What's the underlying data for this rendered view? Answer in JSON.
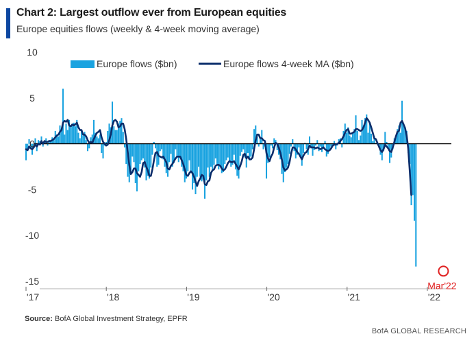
{
  "header": {
    "title": "Chart 2: Largest outflow ever from European equities",
    "subtitle": "Europe equities flows (weekly & 4-week moving average)"
  },
  "footer": {
    "source_label": "Source:",
    "source_text": "BofA Global Investment Strategy, EPFR",
    "brand": "BofA GLOBAL RESEARCH"
  },
  "colors": {
    "bar": "#1aa3e0",
    "line": "#0b2d6b",
    "accent": "#0d47a1",
    "highlight": "#e02020"
  },
  "chart_data": {
    "type": "bar",
    "title": "Chart 2: Largest outflow ever from European equities",
    "subtitle": "Europe equities flows (weekly & 4-week moving average)",
    "xlabel": "",
    "ylabel": "",
    "ylim": [
      -15,
      10
    ],
    "yticks": [
      10,
      5,
      0,
      -5,
      -10,
      -15
    ],
    "ytick_labels": [
      "10",
      "5",
      "0",
      "-5",
      "-10",
      "-15"
    ],
    "xlim": [
      2017.0,
      2022.35
    ],
    "xticks": [
      2017,
      2018,
      2019,
      2020,
      2021,
      2022
    ],
    "xtick_labels": [
      "'17",
      "'18",
      "'19",
      "'20",
      "'21",
      "'22"
    ],
    "legend_position": "top-left",
    "annotation": {
      "text": "Mar'22",
      "x": 2022.2,
      "y": -13.6
    },
    "series": [
      {
        "name": "Europe flows ($bn)",
        "kind": "bar",
        "x_start": 2017.0,
        "x_step": 0.0192,
        "values": [
          -1.8,
          -0.6,
          0.5,
          -0.4,
          -1.2,
          -0.3,
          0.6,
          -0.8,
          0.4,
          0.3,
          0.8,
          -0.3,
          0.2,
          0.6,
          -0.2,
          0.4,
          0.3,
          0.7,
          0.4,
          1.4,
          1.0,
          0.8,
          2.0,
          1.5,
          6.0,
          1.0,
          2.2,
          1.5,
          2.6,
          1.8,
          2.0,
          2.3,
          1.9,
          2.6,
          1.2,
          0.6,
          1.4,
          0.9,
          1.3,
          0.4,
          -0.8,
          -0.5,
          0.7,
          1.0,
          2.6,
          1.2,
          0.8,
          0.6,
          1.0,
          -1.0,
          -1.6,
          -0.2,
          0.2,
          1.4,
          2.2,
          1.8,
          4.6,
          1.9,
          1.5,
          1.5,
          2.2,
          2.5,
          2.8,
          1.3,
          -0.4,
          -2.2,
          -3.6,
          -4.2,
          -3.4,
          -1.4,
          -2.0,
          -4.3,
          -5.2,
          -3.0,
          -2.2,
          -1.8,
          -1.6,
          -2.6,
          -4.0,
          -3.5,
          -3.8,
          -2.6,
          -1.2,
          0.2,
          -0.5,
          -2.5,
          -2.3,
          -0.8,
          -0.6,
          -1.7,
          -2.5,
          -3.2,
          -3.6,
          -2.0,
          -1.1,
          -2.5,
          -2.1,
          -0.6,
          -1.4,
          -2.0,
          -1.5,
          -2.5,
          -3.0,
          -4.2,
          -3.8,
          -3.0,
          -1.8,
          -3.2,
          -5.0,
          -4.3,
          -5.5,
          -3.6,
          -2.5,
          -3.6,
          -4.1,
          -3.9,
          -6.0,
          -4.0,
          -2.6,
          -3.6,
          -2.5,
          -2.9,
          -2.3,
          -1.6,
          -2.4,
          -2.8,
          -2.4,
          -3.2,
          -3.1,
          -2.2,
          -1.8,
          -1.5,
          -1.9,
          -2.5,
          -2.3,
          -1.2,
          -2.8,
          -3.5,
          -3.8,
          -1.3,
          -0.9,
          -0.6,
          -1.5,
          -2.6,
          -1.0,
          -1.8,
          -1.4,
          -0.6,
          1.6,
          2.0,
          0.8,
          -0.3,
          0.5,
          1.5,
          -0.6,
          -0.3,
          -3.8,
          -2.1,
          -1.5,
          -0.2,
          -0.5,
          0.6,
          0.4,
          -0.7,
          -1.2,
          -1.7,
          -3.3,
          -4.2,
          -3.1,
          -2.6,
          -2.2,
          -1.1,
          -0.3,
          0.5,
          -0.8,
          -1.6,
          -1.2,
          -0.4,
          -1.4,
          -2.4,
          -1.0,
          0.1,
          -0.6,
          -1.2,
          0.8,
          -0.5,
          -1.3,
          -0.7,
          -0.2,
          0.4,
          -0.8,
          -0.3,
          -0.9,
          -0.5,
          0.3,
          -1.4,
          -1.1,
          -0.7,
          -0.3,
          -0.1,
          0.3,
          -0.6,
          -0.2,
          0.5,
          0.6,
          -0.4,
          1.4,
          2.2,
          1.2,
          1.8,
          0.9,
          0.7,
          1.2,
          1.6,
          3.1,
          1.4,
          0.4,
          0.9,
          2.6,
          2.0,
          2.8,
          3.2,
          1.2,
          2.3,
          1.1,
          0.3,
          0.8,
          0.1,
          0.2,
          -0.3,
          -1.2,
          -1.8,
          -0.8,
          1.3,
          0.2,
          -0.5,
          -2.1,
          -1.5,
          -0.6,
          0.6,
          0.8,
          1.6,
          2.0,
          1.2,
          4.7,
          2.2,
          1.6,
          1.4,
          -1.0,
          -2.2,
          -6.7,
          -5.6,
          -8.4,
          -13.4
        ]
      },
      {
        "name": "Europe flows 4-week MA ($bn)",
        "kind": "line",
        "x_start": 2017.0,
        "x_step": 0.0192,
        "values": [
          -0.6,
          -0.7,
          -0.3,
          -0.5,
          -0.6,
          -0.4,
          -0.1,
          -0.3,
          0.0,
          -0.1,
          0.3,
          0.0,
          0.3,
          0.2,
          0.2,
          0.3,
          0.3,
          0.4,
          0.5,
          0.7,
          0.9,
          1.0,
          1.3,
          1.5,
          2.3,
          2.5,
          2.4,
          2.6,
          2.0,
          1.9,
          2.1,
          2.0,
          2.1,
          2.3,
          1.8,
          1.5,
          1.5,
          1.0,
          1.0,
          0.8,
          0.4,
          0.1,
          0.2,
          0.1,
          0.5,
          0.9,
          1.2,
          1.3,
          1.5,
          0.7,
          0.2,
          0.0,
          -0.2,
          -0.1,
          0.4,
          1.0,
          2.0,
          2.5,
          2.6,
          2.4,
          1.8,
          1.9,
          2.2,
          2.2,
          1.6,
          0.5,
          -0.9,
          -2.3,
          -3.3,
          -3.1,
          -2.7,
          -2.7,
          -3.2,
          -3.4,
          -3.6,
          -3.1,
          -2.1,
          -2.0,
          -2.5,
          -2.9,
          -3.5,
          -3.5,
          -2.8,
          -1.8,
          -1.0,
          -0.9,
          -1.3,
          -1.4,
          -1.5,
          -1.4,
          -1.7,
          -2.0,
          -2.7,
          -2.8,
          -2.4,
          -2.2,
          -1.9,
          -1.6,
          -1.4,
          -1.4,
          -1.4,
          -1.8,
          -2.2,
          -2.8,
          -3.4,
          -3.5,
          -3.2,
          -3.0,
          -3.2,
          -3.6,
          -4.1,
          -4.6,
          -4.1,
          -3.8,
          -3.4,
          -3.5,
          -4.4,
          -4.5,
          -4.1,
          -4.0,
          -3.2,
          -2.9,
          -2.8,
          -2.4,
          -2.3,
          -2.3,
          -2.4,
          -2.7,
          -2.9,
          -2.8,
          -2.5,
          -2.1,
          -1.9,
          -2.0,
          -2.0,
          -1.9,
          -2.2,
          -2.5,
          -2.8,
          -2.4,
          -1.9,
          -1.2,
          -1.1,
          -1.6,
          -1.4,
          -1.7,
          -1.7,
          -1.5,
          -0.6,
          0.4,
          1.0,
          1.0,
          0.6,
          0.6,
          0.4,
          0.3,
          -1.0,
          -1.6,
          -1.9,
          -1.4,
          -1.1,
          -0.4,
          0.1,
          0.0,
          -0.4,
          -1.0,
          -1.7,
          -2.6,
          -2.9,
          -2.8,
          -2.6,
          -2.0,
          -1.1,
          -0.4,
          -0.4,
          -0.6,
          -0.9,
          -1.1,
          -1.4,
          -1.7,
          -1.3,
          -1.0,
          -0.9,
          -0.6,
          -0.2,
          -0.4,
          -0.4,
          -0.4,
          -0.5,
          -0.4,
          -0.5,
          -0.6,
          -0.5,
          -0.4,
          -0.6,
          -0.7,
          -0.8,
          -0.7,
          -0.5,
          -0.2,
          -0.1,
          -0.1,
          0.0,
          0.1,
          0.3,
          0.5,
          0.8,
          1.2,
          1.5,
          1.6,
          1.1,
          1.1,
          1.2,
          1.3,
          1.6,
          1.6,
          1.5,
          1.4,
          1.5,
          1.8,
          2.3,
          2.8,
          2.6,
          2.3,
          1.8,
          1.2,
          0.6,
          0.5,
          0.1,
          -0.3,
          -0.7,
          -0.9,
          -0.6,
          -0.1,
          -0.3,
          -0.5,
          -0.8,
          -0.9,
          -0.4,
          0.2,
          0.8,
          1.3,
          1.4,
          2.3,
          2.5,
          2.1,
          1.7,
          0.9,
          -0.5,
          -3.0,
          -5.6
        ]
      }
    ]
  }
}
